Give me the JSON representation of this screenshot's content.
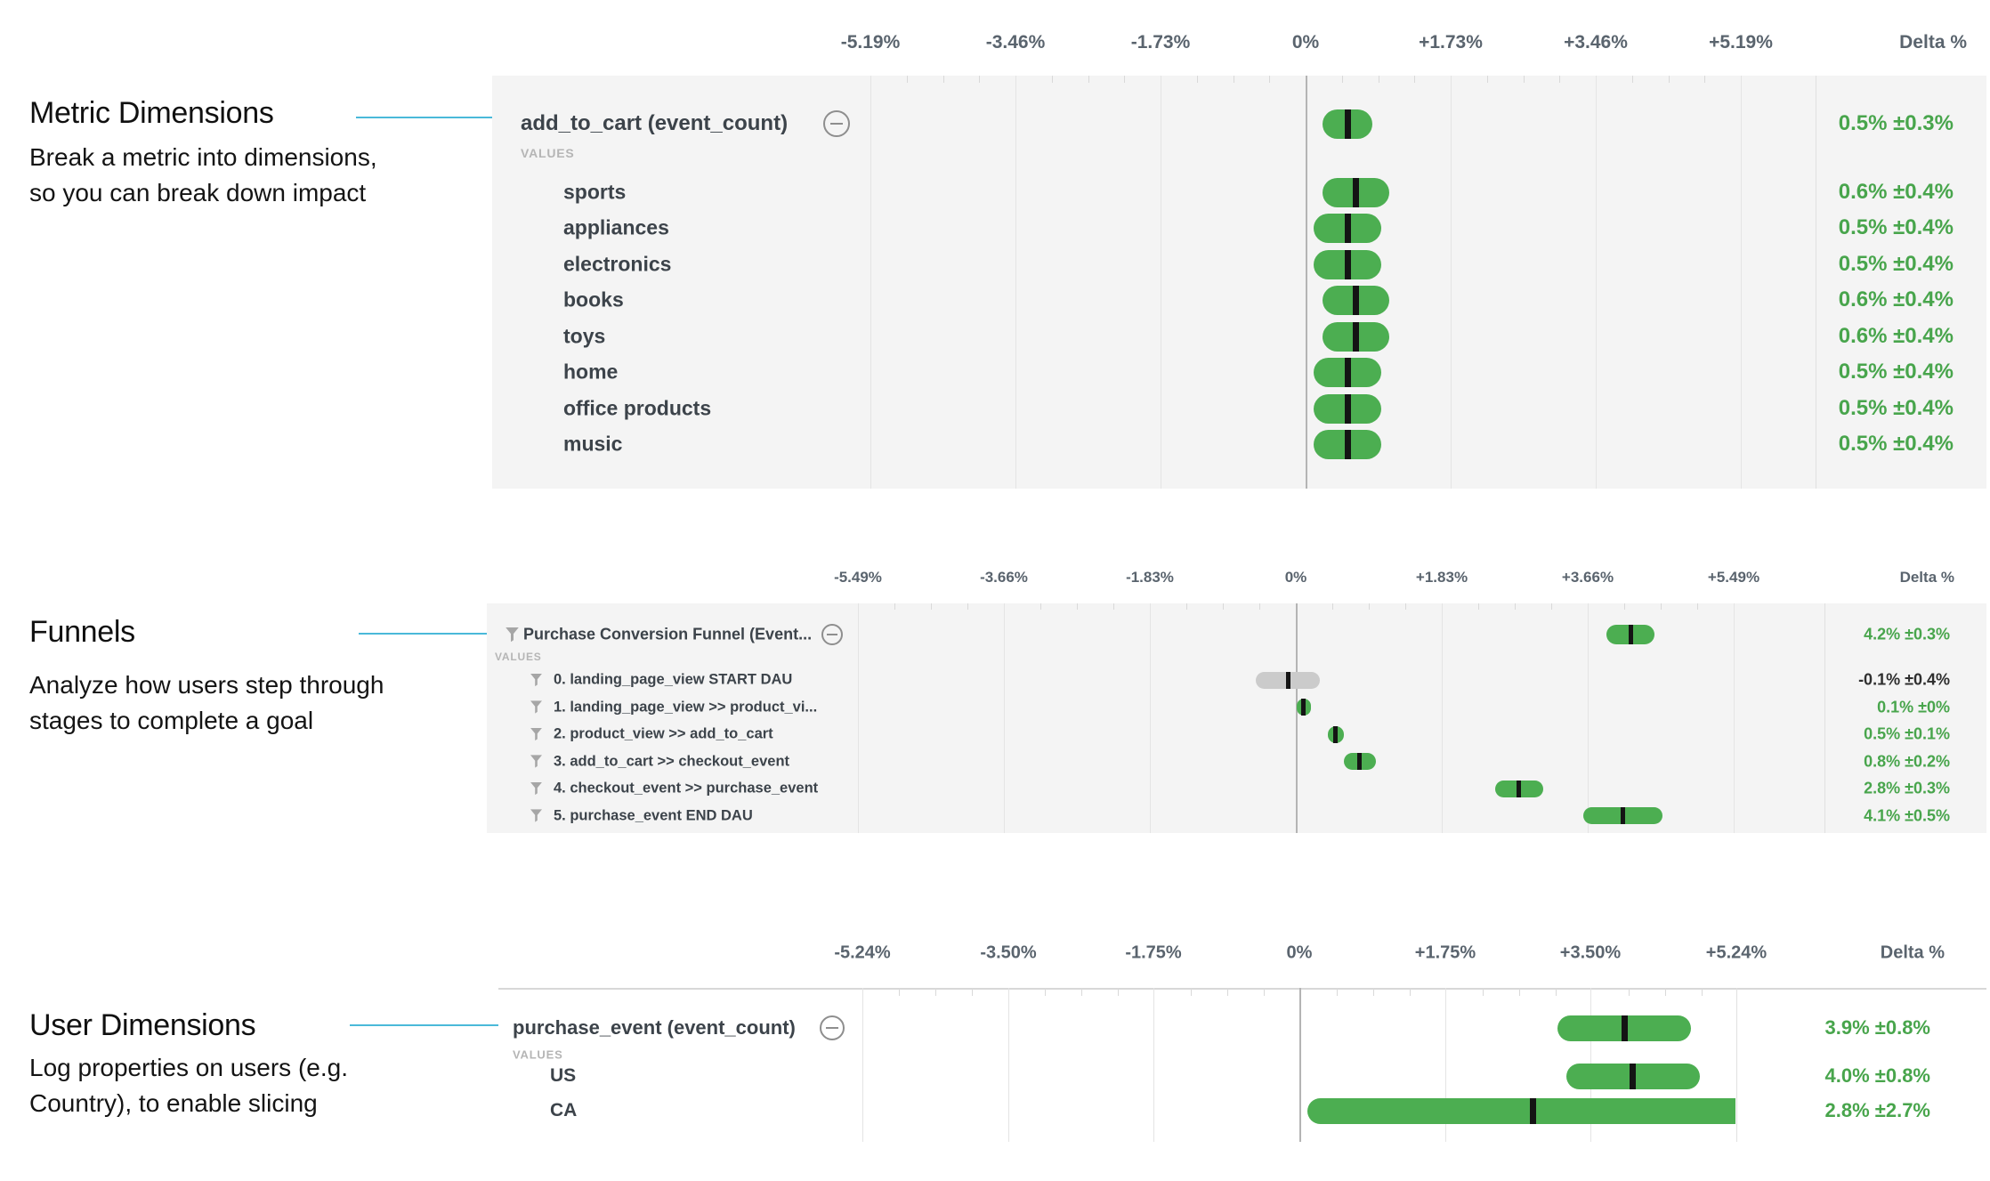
{
  "annotations": [
    {
      "title": "Metric Dimensions",
      "desc_lines": [
        "Break a metric into dimensions,",
        "so you can break down impact"
      ]
    },
    {
      "title": "Funnels",
      "desc_lines": [
        "Analyze how users step through",
        "stages to complete a goal"
      ]
    },
    {
      "title": "User Dimensions",
      "desc_lines": [
        "Log properties on users (e.g.",
        "Country), to enable slicing"
      ]
    }
  ],
  "colors": {
    "bar_green": "#4cae51",
    "bar_gray": "#cbcbcb",
    "marker": "#141414",
    "text_green": "#48a54c",
    "text_dark": "#2e2e2e",
    "callout": "#4ab9d9"
  },
  "chart_data": [
    {
      "type": "interval",
      "title": "add_to_cart (event_count)",
      "values_label": "VALUES",
      "delta_header": "Delta %",
      "axis_ticks": [
        "-5.19%",
        "-3.46%",
        "-1.73%",
        "0%",
        "+1.73%",
        "+3.46%",
        "+5.19%"
      ],
      "collapse_icon": "minus-circle-icon",
      "header": {
        "label": "add_to_cart (event_count)",
        "value": 0.5,
        "ci": 0.3,
        "delta": "0.5% ±0.3%",
        "bar": "green",
        "text": "green"
      },
      "rows": [
        {
          "label": "sports",
          "value": 0.6,
          "ci": 0.4,
          "delta": "0.6% ±0.4%",
          "bar": "green",
          "text": "green"
        },
        {
          "label": "appliances",
          "value": 0.5,
          "ci": 0.4,
          "delta": "0.5% ±0.4%",
          "bar": "green",
          "text": "green"
        },
        {
          "label": "electronics",
          "value": 0.5,
          "ci": 0.4,
          "delta": "0.5% ±0.4%",
          "bar": "green",
          "text": "green"
        },
        {
          "label": "books",
          "value": 0.6,
          "ci": 0.4,
          "delta": "0.6% ±0.4%",
          "bar": "green",
          "text": "green"
        },
        {
          "label": "toys",
          "value": 0.6,
          "ci": 0.4,
          "delta": "0.6% ±0.4%",
          "bar": "green",
          "text": "green"
        },
        {
          "label": "home",
          "value": 0.5,
          "ci": 0.4,
          "delta": "0.5% ±0.4%",
          "bar": "green",
          "text": "green"
        },
        {
          "label": "office products",
          "value": 0.5,
          "ci": 0.4,
          "delta": "0.5% ±0.4%",
          "bar": "green",
          "text": "green"
        },
        {
          "label": "music",
          "value": 0.5,
          "ci": 0.4,
          "delta": "0.5% ±0.4%",
          "bar": "green",
          "text": "green"
        }
      ]
    },
    {
      "type": "interval",
      "title": "Purchase Conversion Funnel (Event...",
      "values_label": "VALUES",
      "delta_header": "Delta %",
      "axis_ticks": [
        "-5.49%",
        "-3.66%",
        "-1.83%",
        "0%",
        "+1.83%",
        "+3.66%",
        "+5.49%"
      ],
      "collapse_icon": "minus-circle-icon",
      "row_icon": "funnel-icon",
      "header": {
        "label": "Purchase Conversion Funnel (Event...",
        "value": 4.2,
        "ci": 0.3,
        "delta": "4.2% ±0.3%",
        "bar": "green",
        "text": "green",
        "icon": "funnel-icon"
      },
      "rows": [
        {
          "label": "0. landing_page_view START DAU",
          "value": -0.1,
          "ci": 0.4,
          "delta": "-0.1% ±0.4%",
          "bar": "gray",
          "text": "dark",
          "icon": "funnel-icon"
        },
        {
          "label": "1. landing_page_view >> product_vi...",
          "value": 0.1,
          "ci": 0.0,
          "delta": "0.1% ±0%",
          "bar": "green",
          "text": "green",
          "icon": "funnel-icon"
        },
        {
          "label": "2. product_view >> add_to_cart",
          "value": 0.5,
          "ci": 0.1,
          "delta": "0.5% ±0.1%",
          "bar": "green",
          "text": "green",
          "icon": "funnel-icon"
        },
        {
          "label": "3. add_to_cart >> checkout_event",
          "value": 0.8,
          "ci": 0.2,
          "delta": "0.8% ±0.2%",
          "bar": "green",
          "text": "green",
          "icon": "funnel-icon"
        },
        {
          "label": "4. checkout_event >> purchase_event",
          "value": 2.8,
          "ci": 0.3,
          "delta": "2.8% ±0.3%",
          "bar": "green",
          "text": "green",
          "icon": "funnel-icon"
        },
        {
          "label": "5. purchase_event END DAU",
          "value": 4.1,
          "ci": 0.5,
          "delta": "4.1% ±0.5%",
          "bar": "green",
          "text": "green",
          "icon": "funnel-icon"
        }
      ]
    },
    {
      "type": "interval",
      "title": "purchase_event (event_count)",
      "values_label": "VALUES",
      "delta_header": "Delta %",
      "axis_ticks": [
        "-5.24%",
        "-3.50%",
        "-1.75%",
        "0%",
        "+1.75%",
        "+3.50%",
        "+5.24%"
      ],
      "collapse_icon": "minus-circle-icon",
      "header": {
        "label": "purchase_event (event_count)",
        "value": 3.9,
        "ci": 0.8,
        "delta": "3.9% ±0.8%",
        "bar": "green",
        "text": "green"
      },
      "rows": [
        {
          "label": "US",
          "value": 4.0,
          "ci": 0.8,
          "delta": "4.0% ±0.8%",
          "bar": "green",
          "text": "green"
        },
        {
          "label": "CA",
          "value": 2.8,
          "ci": 2.7,
          "delta": "2.8% ±2.7%",
          "bar": "green",
          "text": "green"
        }
      ]
    }
  ]
}
